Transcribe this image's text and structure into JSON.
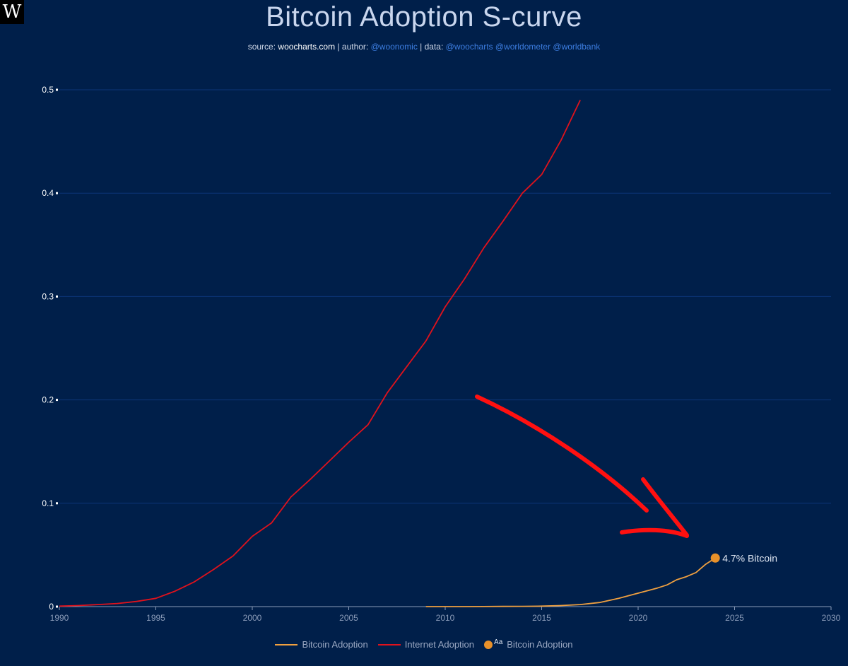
{
  "logo": {
    "glyph": "W"
  },
  "header": {
    "title": "Bitcoin Adoption S-curve",
    "source_label": "source:",
    "source_site": "woocharts.com",
    "author_label": "| author:",
    "author": "@woonomic",
    "data_label": "| data:",
    "data_sources": "@woocharts @worldometer @worldbank"
  },
  "chart_data": {
    "type": "line",
    "title": "Bitcoin Adoption S-curve",
    "xlabel": "",
    "ylabel": "",
    "xlim": [
      1990,
      2030
    ],
    "ylim": [
      0,
      0.5
    ],
    "x_ticks": [
      1990,
      1995,
      2000,
      2005,
      2010,
      2015,
      2020,
      2025,
      2030
    ],
    "y_ticks": [
      0,
      0.1,
      0.2,
      0.3,
      0.4,
      0.5
    ],
    "y_tick_labels": [
      "0",
      "0.1",
      "0.2",
      "0.3",
      "0.4",
      "0.5"
    ],
    "grid": true,
    "legend_position": "bottom",
    "series": [
      {
        "name": "Internet Adoption",
        "color": "#e0121c",
        "x": [
          1990,
          1991,
          1992,
          1993,
          1994,
          1995,
          1996,
          1997,
          1998,
          1999,
          2000,
          2001,
          2002,
          2003,
          2004,
          2005,
          2006,
          2007,
          2008,
          2009,
          2010,
          2011,
          2012,
          2013,
          2014,
          2015,
          2016,
          2017
        ],
        "y": [
          0.0005,
          0.001,
          0.002,
          0.003,
          0.005,
          0.008,
          0.015,
          0.024,
          0.036,
          0.049,
          0.068,
          0.081,
          0.106,
          0.123,
          0.141,
          0.159,
          0.176,
          0.207,
          0.232,
          0.257,
          0.29,
          0.317,
          0.347,
          0.373,
          0.4,
          0.418,
          0.451,
          0.49
        ]
      },
      {
        "name": "Bitcoin Adoption",
        "color": "#f0a040",
        "x": [
          2009,
          2010,
          2011,
          2012,
          2013,
          2014,
          2015,
          2016,
          2017,
          2018,
          2019,
          2020,
          2021,
          2021.5,
          2022,
          2022.5,
          2023,
          2023.5,
          2024
        ],
        "y": [
          0,
          0,
          0,
          0.0001,
          0.0002,
          0.0003,
          0.0005,
          0.001,
          0.002,
          0.004,
          0.008,
          0.013,
          0.018,
          0.021,
          0.026,
          0.029,
          0.033,
          0.041,
          0.047
        ]
      }
    ],
    "annotations": [
      {
        "label": "4.7% Bitcoin",
        "x": 2024,
        "y": 0.047
      }
    ],
    "legend": [
      {
        "label": "Bitcoin Adoption",
        "kind": "line",
        "color": "#f0a040"
      },
      {
        "label": "Internet Adoption",
        "kind": "line",
        "color": "#e0121c"
      },
      {
        "label": "Bitcoin Adoption",
        "kind": "marker",
        "color": "#e8912a",
        "badge": "Aa"
      }
    ]
  }
}
